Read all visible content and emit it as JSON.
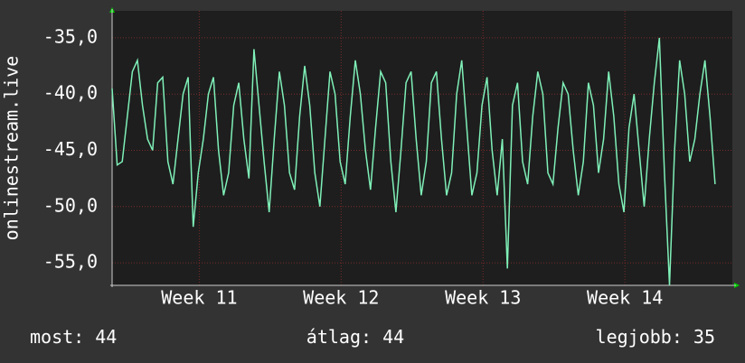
{
  "chart_data": {
    "type": "line",
    "ylabel": "onlinestream.live",
    "x": [
      0,
      0.25,
      0.5,
      0.75,
      1,
      1.25,
      1.5,
      1.75,
      2,
      2.25,
      2.5,
      2.75,
      3,
      3.25,
      3.5,
      3.75,
      4,
      4.25,
      4.5,
      4.75,
      5,
      5.25,
      5.5,
      5.75,
      6,
      6.25,
      6.5,
      6.75,
      7,
      7.25,
      7.5,
      7.75,
      8,
      8.25,
      8.5,
      8.75,
      9,
      9.25,
      9.5,
      9.75,
      10,
      10.25,
      10.5,
      10.75,
      11,
      11.25,
      11.5,
      11.75,
      12,
      12.25,
      12.5,
      12.75,
      13,
      13.25,
      13.5,
      13.75,
      14,
      14.25,
      14.5,
      14.75,
      15,
      15.25,
      15.5,
      15.75,
      16,
      16.25,
      16.5,
      16.75,
      17,
      17.25,
      17.5,
      17.75,
      18,
      18.25,
      18.5,
      18.75,
      19,
      19.25,
      19.5,
      19.75,
      20,
      20.25,
      20.5,
      20.75,
      21,
      21.25,
      21.5,
      21.75,
      22,
      22.25,
      22.5,
      22.75,
      23,
      23.25,
      23.5,
      23.75,
      24,
      24.25,
      24.5,
      24.75,
      25,
      25.25,
      25.5,
      25.75,
      26,
      26.25,
      26.5,
      26.75,
      27,
      27.25,
      27.5,
      27.75,
      28,
      28.25,
      28.5,
      28.75,
      29,
      29.25,
      29.5,
      29.75
    ],
    "series": [
      {
        "color": "#7ff0b8",
        "values": [
          -39.5,
          -46.3,
          -46,
          -42,
          -38,
          -37,
          -41,
          -44,
          -45,
          -39,
          -38.5,
          -46,
          -48,
          -44,
          -40,
          -38.5,
          -51.8,
          -47,
          -44,
          -40,
          -38.5,
          -45,
          -49,
          -47,
          -41,
          -39,
          -44,
          -47.5,
          -36,
          -41,
          -46,
          -50.5,
          -44,
          -38,
          -41,
          -47,
          -48.5,
          -42,
          -37.5,
          -41,
          -47,
          -50,
          -44,
          -38,
          -40,
          -46,
          -48,
          -42,
          -37,
          -40,
          -45,
          -48.5,
          -43,
          -38,
          -39,
          -46,
          -50.5,
          -45,
          -39,
          -38,
          -44,
          -49,
          -46,
          -39,
          -38,
          -44,
          -49,
          -47,
          -40,
          -37,
          -43,
          -49,
          -47,
          -41,
          -38.5,
          -45,
          -49,
          -44,
          -55.5,
          -41,
          -39,
          -46,
          -48,
          -42,
          -38,
          -40,
          -47,
          -48,
          -43,
          -39,
          -40,
          -45,
          -49,
          -46,
          -39,
          -41,
          -47,
          -44,
          -38,
          -42,
          -48,
          -50.5,
          -43,
          -40,
          -45,
          -50,
          -44,
          -39,
          -35,
          -47,
          -57,
          -45,
          -37,
          -40,
          -46,
          -44,
          -40,
          -37,
          -42,
          -48
        ]
      }
    ],
    "xlim": [
      0,
      30.6
    ],
    "xticks": [
      {
        "value": 4.3,
        "label": "Week 11"
      },
      {
        "value": 11.3,
        "label": "Week 12"
      },
      {
        "value": 18.3,
        "label": "Week 13"
      },
      {
        "value": 25.3,
        "label": "Week 14"
      }
    ],
    "ylim": [
      -57,
      -32.6
    ],
    "yticks": [
      {
        "value": -35,
        "label": "-35,0"
      },
      {
        "value": -40,
        "label": "-40,0"
      },
      {
        "value": -45,
        "label": "-45,0"
      },
      {
        "value": -50,
        "label": "-50,0"
      },
      {
        "value": -55,
        "label": "-55,0"
      }
    ],
    "grid": true,
    "stats": [
      {
        "label": "most:",
        "value": 44
      },
      {
        "label": "átlag:",
        "value": 44
      },
      {
        "label": "legjobb:",
        "value": 35
      }
    ]
  }
}
